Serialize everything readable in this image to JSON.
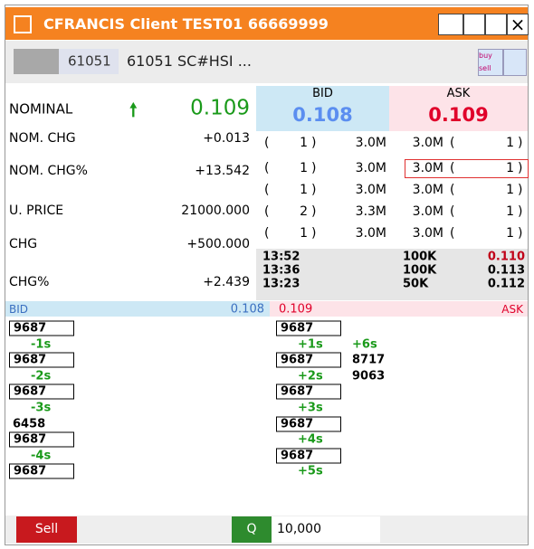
{
  "window": {
    "title": "CFRANCIS Client TEST01 66669999"
  },
  "instrument": {
    "code": "61051",
    "name": "61051 SC#HSI ..."
  },
  "buttons": {
    "buy_sell": "buy sell"
  },
  "quote": {
    "nominal_label": "NOMINAL",
    "nominal": "0.109",
    "fields": [
      {
        "label": "NOM. CHG",
        "value": "+0.013"
      },
      {
        "label": "NOM. CHG%",
        "value": "+13.542"
      },
      {
        "label": "U. PRICE",
        "value": "21000.000"
      },
      {
        "label": "CHG",
        "value": "+500.000"
      },
      {
        "label": "CHG%",
        "value": "+2.439"
      }
    ]
  },
  "bid": {
    "label": "BID",
    "price": "0.108"
  },
  "ask": {
    "label": "ASK",
    "price": "0.109"
  },
  "depth": {
    "bid": [
      {
        "count": "1",
        "volume": "3.0M"
      },
      {
        "count": "1",
        "volume": "3.0M"
      },
      {
        "count": "1",
        "volume": "3.0M"
      },
      {
        "count": "2",
        "volume": "3.3M"
      },
      {
        "count": "1",
        "volume": "3.0M"
      }
    ],
    "ask": [
      {
        "count": "1",
        "volume": "3.0M"
      },
      {
        "count": "1",
        "volume": "3.0M"
      },
      {
        "count": "1",
        "volume": "3.0M"
      },
      {
        "count": "1",
        "volume": "3.0M"
      },
      {
        "count": "1",
        "volume": "3.0M"
      }
    ]
  },
  "trades": [
    {
      "time": "13:52",
      "volume": "100K",
      "price": "0.110"
    },
    {
      "time": "13:36",
      "volume": "100K",
      "price": "0.113"
    },
    {
      "time": "13:23",
      "volume": "50K",
      "price": "0.112"
    }
  ],
  "queue": {
    "bid": [
      [
        {
          "text": "9687",
          "boxed": true
        }
      ],
      [
        "-1s"
      ],
      [
        {
          "text": "9687",
          "boxed": true
        }
      ],
      [
        "-2s"
      ],
      [
        {
          "text": "9687",
          "boxed": true
        }
      ],
      [
        "-3s"
      ],
      [
        "6458"
      ],
      [
        {
          "text": "9687",
          "boxed": true
        }
      ],
      [
        "-4s"
      ],
      [
        {
          "text": "9687",
          "boxed": true
        }
      ]
    ],
    "ask": [
      [
        {
          "text": "9687",
          "boxed": true
        }
      ],
      [
        "+1s",
        "+6s"
      ],
      [
        {
          "text": "9687",
          "boxed": true
        },
        "8717"
      ],
      [
        "+2s",
        "9063"
      ],
      [
        {
          "text": "9687",
          "boxed": true
        }
      ],
      [
        "+3s"
      ],
      [
        {
          "text": "9687",
          "boxed": true
        }
      ],
      [
        "+4s"
      ],
      [
        {
          "text": "9687",
          "boxed": true
        }
      ],
      [
        "+5s"
      ]
    ]
  },
  "order": {
    "sell": "Sell",
    "quantity_button": "Q",
    "quantity": "10,000"
  }
}
